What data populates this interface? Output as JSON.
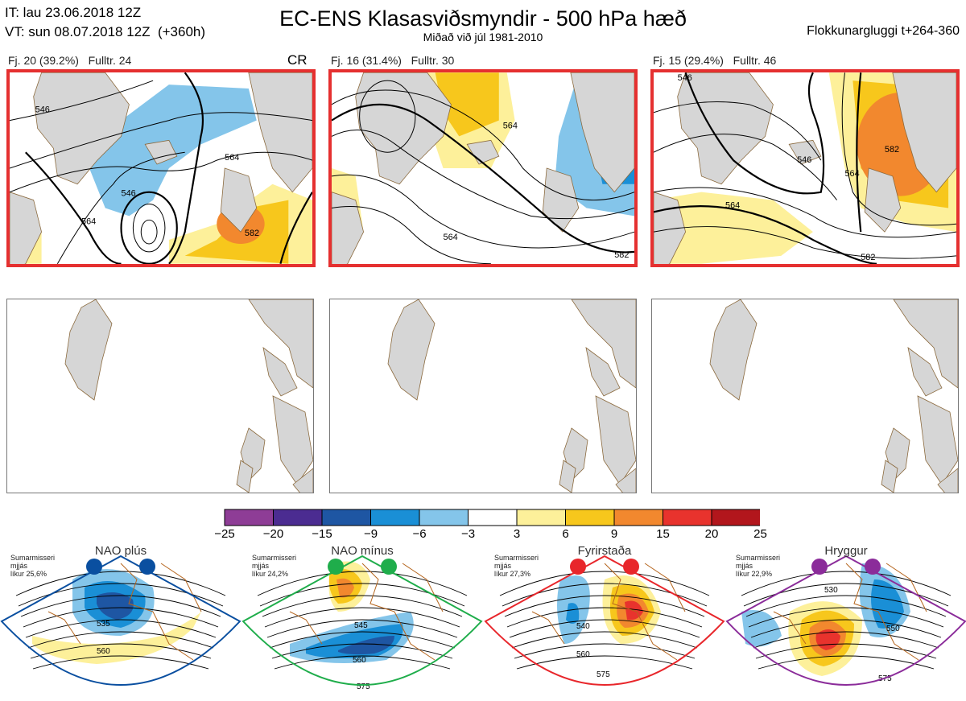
{
  "header": {
    "it_line": "IT: lau 23.06.2018 12Z",
    "vt_line": "VT: sun 08.07.2018 12Z  (+360h)",
    "title": "EC-ENS Klasasviðsmyndir - 500 hPa hæð",
    "subtitle": "Miðað við júl 1981-2010",
    "window": "Flokkunargluggi t+264-360"
  },
  "clusters": [
    {
      "label": "Fj. 20 (39.2%)",
      "rep": "Fulltr. 24",
      "code": "CR",
      "contours": [
        "546",
        "564",
        "546",
        "564",
        "582"
      ]
    },
    {
      "label": "Fj. 16 (31.4%)",
      "rep": "Fulltr. 30",
      "code": "",
      "contours": [
        "564",
        "564",
        "582"
      ]
    },
    {
      "label": "Fj. 15 (29.4%)",
      "rep": "Fulltr. 46",
      "code": "",
      "contours": [
        "546",
        "546",
        "564",
        "582",
        "564",
        "582"
      ]
    }
  ],
  "colorbar": {
    "colors": [
      "#8e3d96",
      "#4b2c91",
      "#1e56a3",
      "#1a8fd6",
      "#84c5ea",
      "#ffffff",
      "#fdf09a",
      "#f7c71c",
      "#f2882e",
      "#e8332d",
      "#b2161c"
    ],
    "ticks": [
      "−25",
      "−20",
      "−15",
      "−9",
      "−6",
      "−3",
      "3",
      "6",
      "9",
      "15",
      "20",
      "25"
    ]
  },
  "regimes": [
    {
      "name": "NAO plús",
      "note": "Sumarmisseri\nmjjás\nlíkur 25,6%",
      "color": "#0a4fa0",
      "labels": [
        "535",
        "560"
      ]
    },
    {
      "name": "NAO mínus",
      "note": "Sumarmisseri\nmjjás\nlíkur 24,2%",
      "color": "#1fad4b",
      "labels": [
        "545",
        "560",
        "575"
      ]
    },
    {
      "name": "Fyrirstaða",
      "note": "Sumarmisseri\nmjjás\nlíkur 27,3%",
      "color": "#e8262b",
      "labels": [
        "540",
        "560",
        "575"
      ]
    },
    {
      "name": "Hryggur",
      "note": "Sumarmisseri\nmjjás\nlíkur 22,9%",
      "color": "#8b2c9a",
      "labels": [
        "530",
        "550",
        "575"
      ]
    }
  ]
}
